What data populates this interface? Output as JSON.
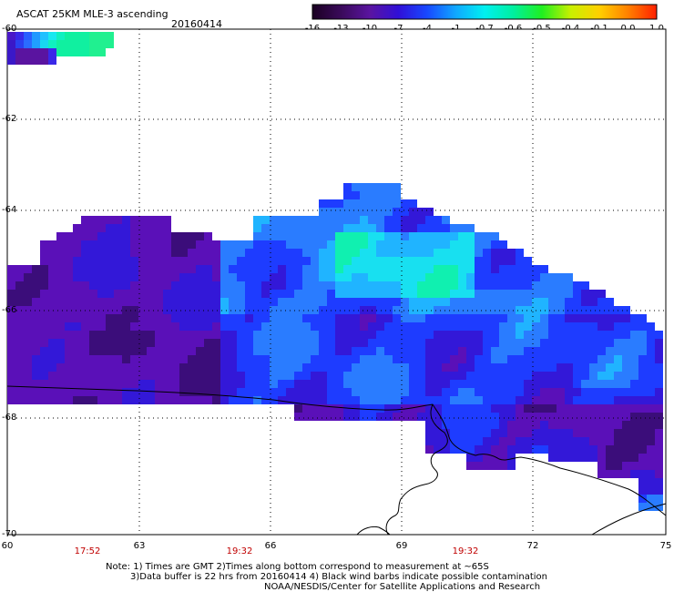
{
  "header": {
    "title": "ASCAT 25KM MLE-3 ascending",
    "date": "20160414"
  },
  "colorbar": {
    "labels": [
      "-16",
      "-13",
      "-10",
      "-7",
      "-4",
      "-1",
      "-0.7",
      "-0.6",
      "-0.5",
      "-0.4",
      "-0.1",
      "0.0",
      "1.0"
    ],
    "colors": [
      "#1a0022",
      "#3a0a5a",
      "#5a14a0",
      "#3010d8",
      "#1848ff",
      "#10a8ff",
      "#00f0f0",
      "#00f0a0",
      "#20f020",
      "#c8f000",
      "#ffd000",
      "#ff8000",
      "#ff2000"
    ]
  },
  "axes": {
    "lat_labels": [
      "-60",
      "-62",
      "-64",
      "-66",
      "-68",
      "-70"
    ],
    "lon_labels": [
      "60",
      "63",
      "66",
      "69",
      "72",
      "75"
    ],
    "time_labels": [
      "17:52",
      "19:32",
      "19:32"
    ]
  },
  "notes": {
    "line1": "Note: 1) Times are GMT 2)Times along bottom correspond to measurement at ~65S",
    "line2": "3)Data buffer is 22 hrs from 20160414 4) Black wind barbs indicate possible contamination",
    "line3": "NOAA/NESDIS/Center for Satellite Applications and Research"
  }
}
